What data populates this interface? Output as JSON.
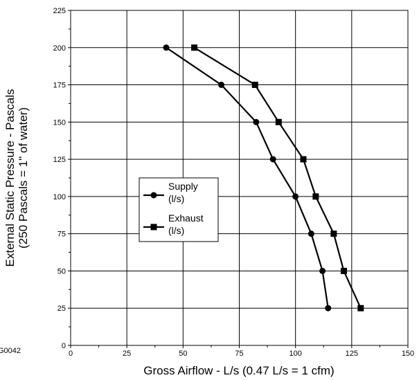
{
  "figure_id": "G0042",
  "chart_data": {
    "type": "line",
    "title": "",
    "xlabel": "Gross Airflow - L/s (0.47 L/s = 1 cfm)",
    "ylabel_line1": "External Static Pressure - Pascals",
    "ylabel_line2": "(250 Pascals = 1\" of water)",
    "xlim": [
      0,
      150
    ],
    "ylim": [
      0,
      225
    ],
    "x_ticks": [
      0,
      25,
      50,
      75,
      100,
      125,
      150
    ],
    "y_ticks": [
      0,
      25,
      50,
      75,
      100,
      125,
      150,
      175,
      200,
      225
    ],
    "grid": true,
    "legend_position": "center-left",
    "series": [
      {
        "name": "Supply (l/s)",
        "legend_lines": [
          "Supply",
          "(l/s)"
        ],
        "marker": "circle",
        "color": "#000000",
        "points": [
          {
            "x": 42.5,
            "y": 200
          },
          {
            "x": 67,
            "y": 175
          },
          {
            "x": 82.5,
            "y": 150
          },
          {
            "x": 90,
            "y": 125
          },
          {
            "x": 100,
            "y": 100
          },
          {
            "x": 107,
            "y": 75
          },
          {
            "x": 112,
            "y": 50
          },
          {
            "x": 114.5,
            "y": 25
          }
        ]
      },
      {
        "name": "Exhaust (l/s)",
        "legend_lines": [
          "Exhaust",
          "(l/s)"
        ],
        "marker": "square",
        "color": "#000000",
        "points": [
          {
            "x": 55,
            "y": 200
          },
          {
            "x": 82,
            "y": 175
          },
          {
            "x": 92.5,
            "y": 150
          },
          {
            "x": 103.5,
            "y": 125
          },
          {
            "x": 109,
            "y": 100
          },
          {
            "x": 117,
            "y": 75
          },
          {
            "x": 121.5,
            "y": 50
          },
          {
            "x": 129,
            "y": 25
          }
        ]
      }
    ]
  }
}
